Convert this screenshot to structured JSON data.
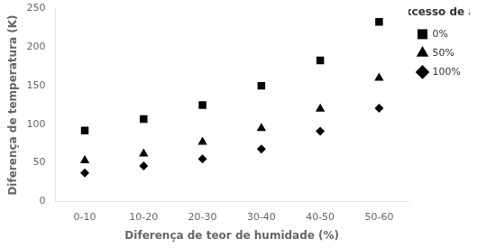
{
  "chart_data": {
    "type": "scatter",
    "categories": [
      "0-10",
      "10-20",
      "20-30",
      "30-40",
      "40-50",
      "50-60"
    ],
    "series": [
      {
        "name": "0%",
        "marker": "square",
        "color": "#000000",
        "values": [
          92,
          107,
          125,
          150,
          183,
          233
        ]
      },
      {
        "name": "50%",
        "marker": "triangle",
        "color": "#000000",
        "values": [
          53,
          62,
          77,
          95,
          120,
          160
        ]
      },
      {
        "name": "100%",
        "marker": "diamond",
        "color": "#000000",
        "values": [
          37,
          46,
          55,
          68,
          91,
          121
        ]
      }
    ],
    "xlabel": "Diferença de teor de humidade (%)",
    "ylabel": "Diferença de temperatura (K)",
    "legend_title": "Excesso de ar",
    "legend": "right",
    "ylim": [
      0,
      250
    ],
    "yticks": [
      0,
      50,
      100,
      150,
      200,
      250
    ],
    "grid": false
  }
}
